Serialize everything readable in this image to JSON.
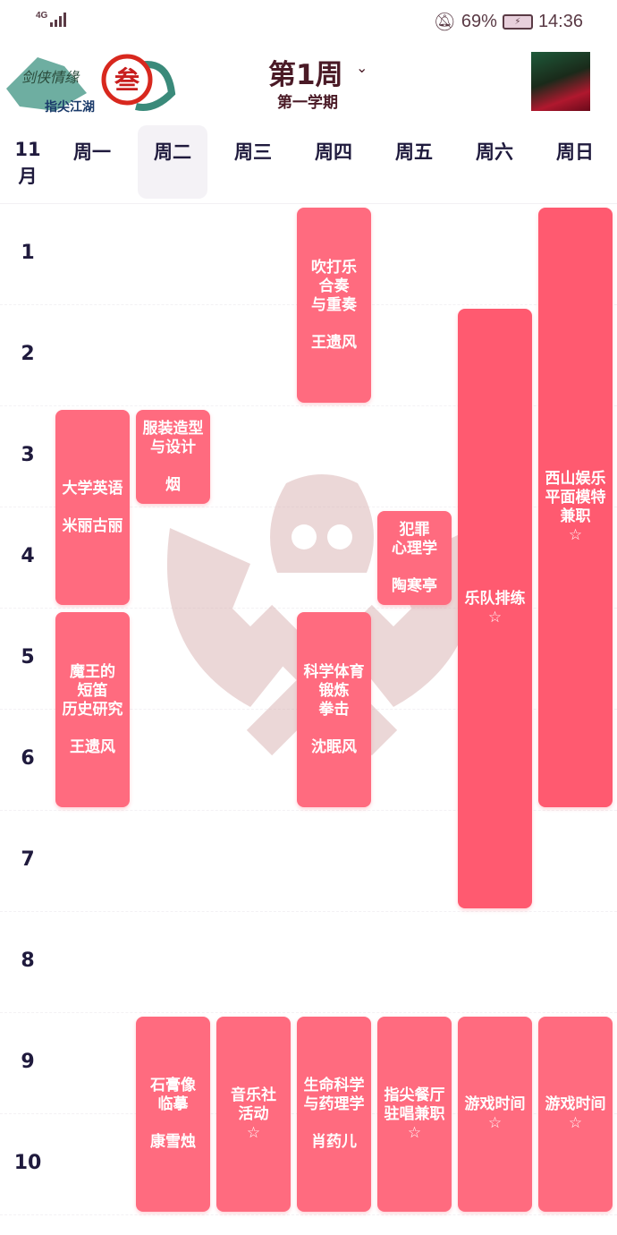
{
  "status_bar": {
    "network": "4G",
    "battery": "69%",
    "time": "14:36",
    "icons": [
      "signal-icon",
      "mute-bell-icon",
      "battery-icon"
    ]
  },
  "header": {
    "title": "第1周",
    "subtitle": "第一学期",
    "logo_text": "剑侠情缘叁 指尖江湖"
  },
  "week": {
    "month_num": "11",
    "month_label": "月",
    "days": [
      "周一",
      "周二",
      "周三",
      "周四",
      "周五",
      "周六",
      "周日"
    ],
    "selected_day": 1
  },
  "periods": [
    "1",
    "2",
    "3",
    "4",
    "5",
    "6",
    "7",
    "8",
    "9",
    "10"
  ],
  "colors": {
    "event": "#ff6b7f",
    "event_long": "#ff5a70",
    "text": "#1f1a3d",
    "title": "#4a1a26"
  },
  "events": [
    {
      "day": 4,
      "start": 1,
      "end": 2,
      "text": "吹打乐\n合奏\n与重奏\n\n王遗风"
    },
    {
      "day": 6,
      "start": 2,
      "end": 7,
      "text": "乐队排练\n☆"
    },
    {
      "day": 7,
      "start": 1,
      "end": 6,
      "text": "西山娱乐\n平面模特\n兼职\n☆"
    },
    {
      "day": 1,
      "start": 3,
      "end": 4,
      "text": "大学英语\n\n米丽古丽"
    },
    {
      "day": 2,
      "start": 3,
      "end": 3,
      "text": "服装造型\n与设计\n\n烟"
    },
    {
      "day": 5,
      "start": 4,
      "end": 4,
      "text": "犯罪\n心理学\n\n陶寒亭"
    },
    {
      "day": 1,
      "start": 5,
      "end": 6,
      "text": "魔王的\n短笛\n历史研究\n\n王遗风"
    },
    {
      "day": 4,
      "start": 5,
      "end": 6,
      "text": "科学体育\n锻炼\n拳击\n\n沈眠风"
    },
    {
      "day": 2,
      "start": 9,
      "end": 10,
      "text": "石膏像\n临摹\n\n康雪烛"
    },
    {
      "day": 3,
      "start": 9,
      "end": 10,
      "text": "音乐社\n活动\n☆"
    },
    {
      "day": 4,
      "start": 9,
      "end": 10,
      "text": "生命科学\n与药理学\n\n肖药儿"
    },
    {
      "day": 5,
      "start": 9,
      "end": 10,
      "text": "指尖餐厅\n驻唱兼职\n☆"
    },
    {
      "day": 6,
      "start": 9,
      "end": 10,
      "text": "游戏时间\n☆"
    },
    {
      "day": 7,
      "start": 9,
      "end": 10,
      "text": "游戏时间\n☆"
    }
  ]
}
